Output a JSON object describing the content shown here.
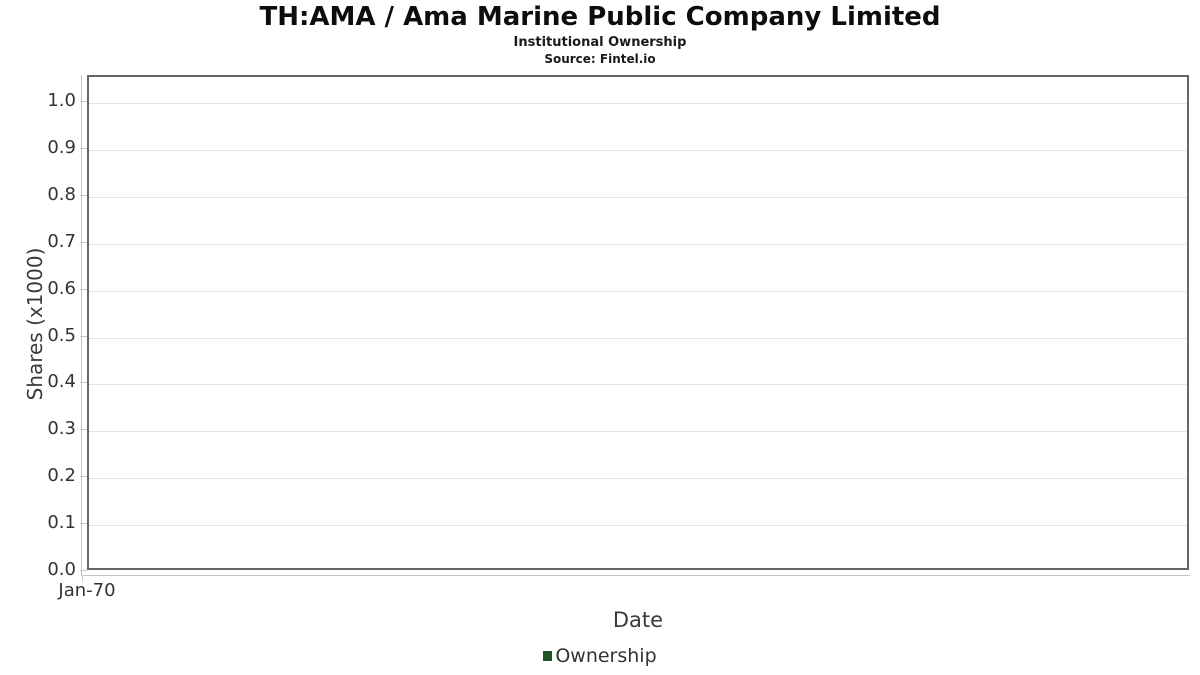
{
  "header": {
    "title": "TH:AMA / Ama Marine Public Company Limited",
    "subtitle": "Institutional Ownership",
    "source": "Source: Fintel.io"
  },
  "chart_data": {
    "type": "line",
    "title": "TH:AMA / Ama Marine Public Company Limited",
    "subtitle": "Institutional Ownership",
    "source": "Source: Fintel.io",
    "xlabel": "Date",
    "ylabel": "Shares (x1000)",
    "x_ticks": [
      "Jan-70"
    ],
    "y_ticks": [
      "0.0",
      "0.1",
      "0.2",
      "0.3",
      "0.4",
      "0.5",
      "0.6",
      "0.7",
      "0.8",
      "0.9",
      "1.0"
    ],
    "ylim": [
      0.0,
      1.055
    ],
    "grid": "horizontal",
    "legend_position": "bottom",
    "series": [
      {
        "name": "Ownership",
        "color": "#1d5428",
        "values": []
      }
    ],
    "colors": {
      "plot_border": "#666666",
      "gridline": "#e4e4e4",
      "axis_line": "#c6c6c6",
      "tick_text": "#333333",
      "legend_marker": "#1d5428"
    }
  }
}
